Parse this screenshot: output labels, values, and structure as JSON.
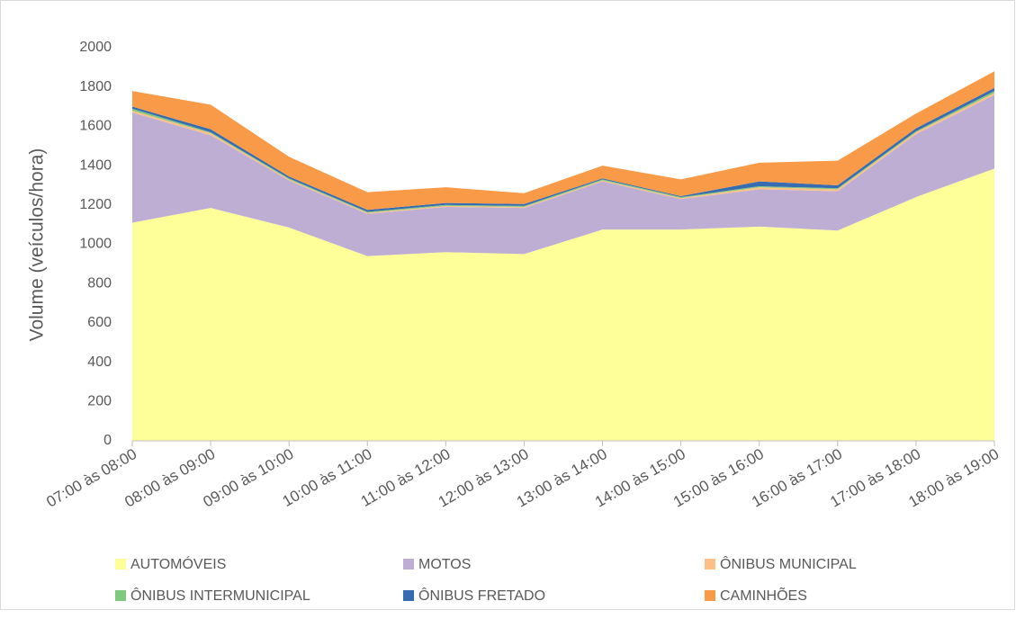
{
  "chart_data": {
    "type": "stacked_area",
    "y_label": "Volume (veículos/hora)",
    "categories": [
      "07:00 às 08:00",
      "08:00 às 09:00",
      "09:00 às 10:00",
      "10:00 às 11:00",
      "11:00 às 12:00",
      "12:00 às 13:00",
      "13:00 às 14:00",
      "14:00 às 15:00",
      "15:00 às 16:00",
      "16:00 às 17:00",
      "17:00 às 18:00",
      "18:00 às 19:00"
    ],
    "series": [
      {
        "name": "AUTOMÓVEIS",
        "color": "#ffff99",
        "values": [
          1110,
          1185,
          1085,
          940,
          960,
          950,
          1075,
          1075,
          1090,
          1070,
          1240,
          1385
        ]
      },
      {
        "name": "MOTOS",
        "color": "#beaed4",
        "values": [
          560,
          370,
          240,
          215,
          230,
          235,
          245,
          155,
          190,
          200,
          320,
          375
        ]
      },
      {
        "name": "ÔNIBUS MUNICIPAL",
        "color": "#fdc086",
        "values": [
          10,
          10,
          5,
          5,
          5,
          5,
          5,
          5,
          10,
          10,
          10,
          10
        ]
      },
      {
        "name": "ÔNIBUS INTERMUNICIPAL",
        "color": "#7fc97f",
        "values": [
          10,
          5,
          5,
          5,
          5,
          5,
          5,
          5,
          5,
          5,
          5,
          10
        ]
      },
      {
        "name": "ÔNIBUS FRETADO",
        "color": "#386cb0",
        "values": [
          10,
          15,
          10,
          10,
          10,
          10,
          5,
          5,
          25,
          15,
          15,
          15
        ]
      },
      {
        "name": "CAMINHÕES",
        "color": "#f89a48",
        "values": [
          80,
          125,
          100,
          90,
          80,
          55,
          65,
          85,
          95,
          125,
          75,
          85
        ]
      }
    ],
    "ylim": [
      0,
      2000
    ],
    "yticks": [
      0,
      200,
      400,
      600,
      800,
      1000,
      1200,
      1400,
      1600,
      1800,
      2000
    ],
    "grid": false
  }
}
